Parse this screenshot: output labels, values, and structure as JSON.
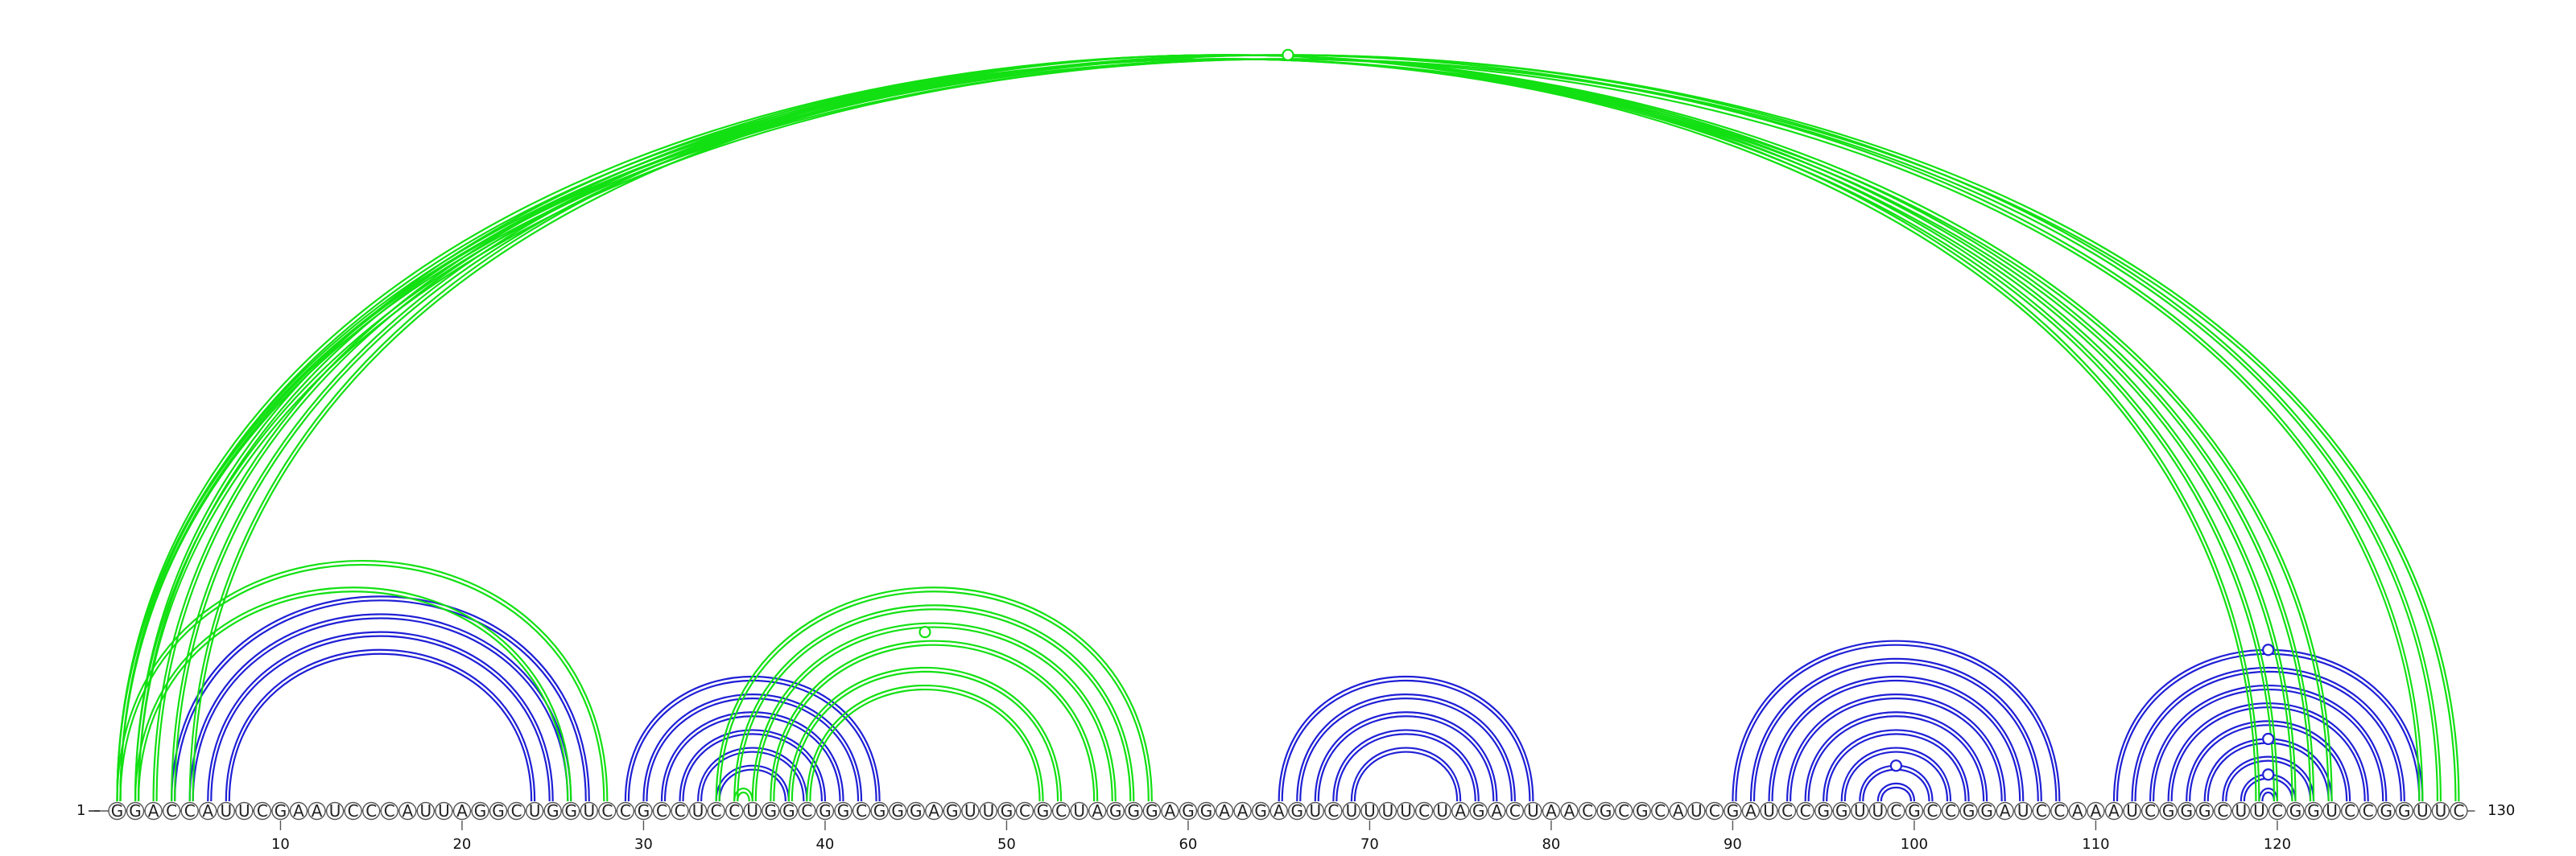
{
  "sequence": "GGACCAUUCGAAUCCCAUUAGGCUGGUCCGCCUCCUGGCGGCGGGAGUUGCGCUAGGGAGGAAGAGUCUUUUCUAGACUAACGCGCAUCGAUCCGGUUCGCCGGAUCCAAAUCGGGCUUCGGUCCGGUUC",
  "start_label": "1",
  "end_label": "130",
  "tick_labels": [
    "10",
    "20",
    "30",
    "40",
    "50",
    "60",
    "70",
    "80",
    "90",
    "100",
    "110",
    "120"
  ],
  "colors": {
    "blue": "#1f1fd6",
    "green": "#12e012",
    "circle_stroke": "#555555",
    "text": "#111111"
  },
  "pair_groups": [
    {
      "color": "blue",
      "pairs": [
        [
          4,
          27
        ],
        [
          5,
          26
        ],
        [
          6,
          25
        ],
        [
          7,
          24
        ]
      ]
    },
    {
      "color": "blue",
      "pairs": [
        [
          29,
          43
        ],
        [
          30,
          42
        ],
        [
          31,
          41
        ],
        [
          32,
          40
        ],
        [
          33,
          39
        ],
        [
          34,
          38
        ]
      ]
    },
    {
      "color": "blue",
      "pairs": [
        [
          65,
          79
        ],
        [
          66,
          78
        ],
        [
          67,
          77
        ],
        [
          68,
          76
        ],
        [
          69,
          75
        ]
      ]
    },
    {
      "color": "blue",
      "pairs": [
        [
          90,
          108
        ],
        [
          91,
          107
        ],
        [
          92,
          106
        ],
        [
          93,
          105
        ],
        [
          94,
          104
        ],
        [
          95,
          103
        ],
        [
          96,
          102
        ],
        [
          97,
          101
        ],
        [
          98,
          100
        ]
      ]
    },
    {
      "color": "blue",
      "pairs": [
        [
          111,
          128
        ],
        [
          112,
          127
        ],
        [
          113,
          126
        ],
        [
          114,
          125
        ],
        [
          115,
          124
        ],
        [
          116,
          123
        ],
        [
          117,
          122
        ],
        [
          118,
          121
        ],
        [
          119,
          120
        ]
      ]
    },
    {
      "color": "green",
      "pairs": [
        [
          1,
          123
        ],
        [
          2,
          122
        ],
        [
          3,
          121
        ],
        [
          4,
          120
        ],
        [
          5,
          119
        ],
        [
          1,
          128
        ],
        [
          1,
          130
        ],
        [
          2,
          129
        ]
      ]
    },
    {
      "color": "green",
      "pairs": [
        [
          1,
          28
        ],
        [
          2,
          26
        ]
      ]
    },
    {
      "color": "green",
      "pairs": [
        [
          34,
          58
        ],
        [
          35,
          57
        ],
        [
          36,
          56
        ],
        [
          37,
          55
        ],
        [
          38,
          53
        ],
        [
          39,
          52
        ]
      ]
    },
    {
      "color": "green",
      "pairs": [
        [
          35,
          36
        ]
      ]
    }
  ],
  "markers": [
    {
      "color": "green",
      "pair": [
        1,
        130
      ]
    },
    {
      "color": "green",
      "pair": [
        36,
        55
      ]
    },
    {
      "color": "blue",
      "pair": [
        111,
        128
      ]
    },
    {
      "color": "blue",
      "pair": [
        116,
        123
      ]
    },
    {
      "color": "blue",
      "pair": [
        118,
        121
      ]
    },
    {
      "color": "blue",
      "pair": [
        97,
        101
      ]
    }
  ]
}
